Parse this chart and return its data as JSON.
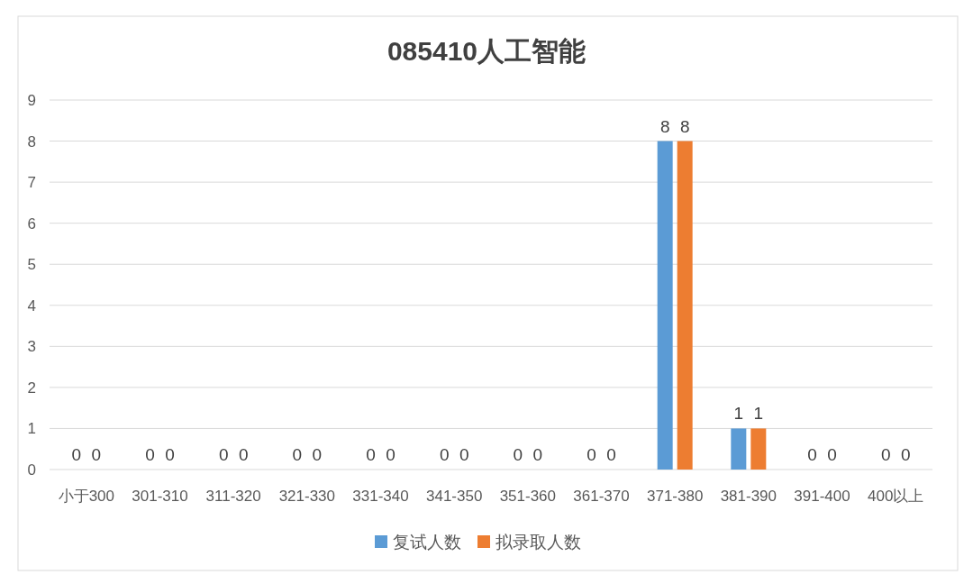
{
  "chart_data": {
    "type": "bar",
    "title": "085410人工智能",
    "categories": [
      "小于300",
      "301-310",
      "311-320",
      "321-330",
      "331-340",
      "341-350",
      "351-360",
      "361-370",
      "371-380",
      "381-390",
      "391-400",
      "400以上"
    ],
    "series": [
      {
        "name": "复试人数",
        "color": "#5b9bd5",
        "values": [
          0,
          0,
          0,
          0,
          0,
          0,
          0,
          0,
          8,
          1,
          0,
          0
        ]
      },
      {
        "name": "拟录取人数",
        "color": "#ed7d31",
        "values": [
          0,
          0,
          0,
          0,
          0,
          0,
          0,
          0,
          8,
          1,
          0,
          0
        ]
      }
    ],
    "ylim": [
      0,
      9
    ],
    "yticks": [
      0,
      1,
      2,
      3,
      4,
      5,
      6,
      7,
      8,
      9
    ],
    "grid": "y",
    "legend": "bottom",
    "data_labels": true
  }
}
